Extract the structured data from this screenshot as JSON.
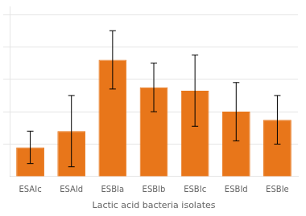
{
  "chart_data": {
    "type": "bar",
    "xlabel": "Lactic acid bacteria isolates",
    "categories": [
      "ESAIc",
      "ESAId",
      "ESBIa",
      "ESBIb",
      "ESBIc",
      "ESBId",
      "ESBIe"
    ],
    "values": [
      1.8,
      2.8,
      7.2,
      5.5,
      5.3,
      4.0,
      3.5
    ],
    "errors": [
      1.0,
      2.2,
      1.8,
      1.5,
      2.2,
      1.8,
      1.5
    ],
    "color": "#E8761A",
    "ylim": [
      0,
      10.5
    ],
    "yticks": [
      2,
      4,
      6,
      8,
      10
    ],
    "grid": true,
    "tick_labels": "x"
  }
}
